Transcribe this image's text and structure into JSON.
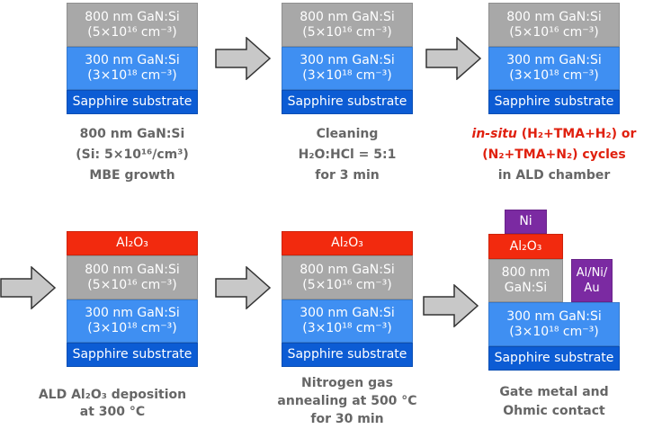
{
  "colors": {
    "undoped_gan": "#a8a8a8",
    "doped_gan": "#3f8ff2",
    "sapphire": "#0c5cd4",
    "al2o3": "#f22a0e",
    "metal": "#7b2aa2",
    "caption": "#666666",
    "highlight": "#e0200e"
  },
  "layers": {
    "gan800_l1": "800 nm GaN:Si",
    "gan800_l2": "(5×10¹⁶ cm⁻³)",
    "gan300_l1": "300 nm GaN:Si",
    "gan300_l2": "(3×10¹⁸ cm⁻³)",
    "sapphire": "Sapphire substrate",
    "al2o3": "Al₂O₃",
    "gan800_short_l1": "800 nm",
    "gan800_short_l2": "GaN:Si",
    "ni": "Ni",
    "ohmic_l1": "Al/Ni/",
    "ohmic_l2": "Au"
  },
  "steps": [
    {
      "lines": [
        "800 nm GaN:Si",
        "(Si: 5×10¹⁶/cm³)",
        "MBE growth"
      ]
    },
    {
      "lines": [
        "Cleaning",
        "H₂O:HCl = 5:1",
        "for 3 min"
      ]
    },
    {
      "lines": [
        "in-situ",
        "(H₂+TMA+H₂) or",
        "(N₂+TMA+N₂) cycles",
        "in ALD chamber"
      ]
    },
    {
      "lines": [
        "ALD Al₂O₃ deposition",
        "at 300 °C"
      ]
    },
    {
      "lines": [
        "Nitrogen gas",
        "annealing at 500 °C",
        "for 30 min"
      ]
    },
    {
      "lines": [
        "Gate metal and",
        "Ohmic contact"
      ]
    }
  ]
}
